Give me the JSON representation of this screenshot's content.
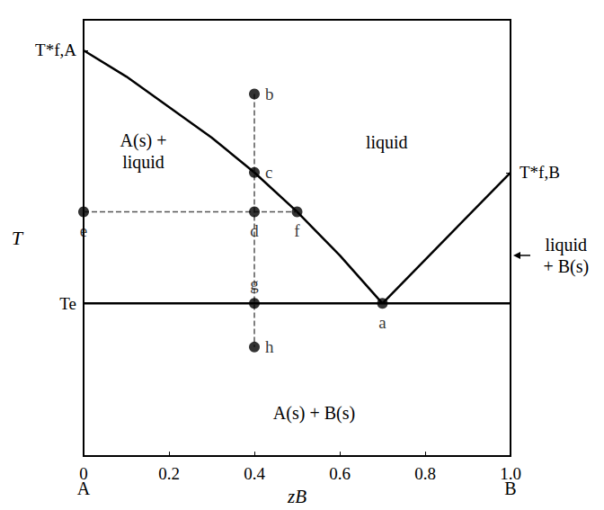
{
  "chart_data": {
    "type": "line",
    "x_label": "zB",
    "y_label": "T",
    "xlim": [
      0,
      1
    ],
    "xticks": [
      0,
      0.2,
      0.4,
      0.6,
      0.8,
      {
        "value": 1,
        "label": "1.0"
      }
    ],
    "ylim": [
      0,
      100
    ],
    "yticks": [
      {
        "value": 35,
        "label": "Te"
      },
      {
        "value": 93,
        "label": "T*f,A"
      }
    ],
    "y2lim": [
      0,
      100
    ],
    "y2ticks": [
      {
        "value": 65,
        "label": "T*f,B"
      }
    ],
    "grid": false,
    "tick_labels": true,
    "series": [
      {
        "x": [
          0,
          0.1,
          0.2,
          0.3,
          0.4,
          0.5,
          0.6,
          0.7
        ],
        "values": [
          93,
          87,
          80,
          73,
          65,
          56,
          46,
          35
        ],
        "color": "#000000",
        "line_style": "solid"
      },
      {
        "x": [
          0.7,
          1.0
        ],
        "values": [
          35,
          65
        ],
        "color": "#000000",
        "line_style": "solid"
      },
      {
        "x": [
          0,
          1
        ],
        "values": [
          35,
          35
        ],
        "color": "#000000",
        "line_style": "solid"
      },
      {
        "x": [
          0.4,
          0.4
        ],
        "values": [
          83,
          25
        ],
        "color": "#555555",
        "line_style": "dashed"
      },
      {
        "x": [
          0,
          0.5
        ],
        "values": [
          56,
          56
        ],
        "color": "#555555",
        "line_style": "dashed"
      }
    ],
    "points": {
      "color": "#000000",
      "marker": "circle",
      "items": [
        {
          "label": "a",
          "x": 0.7,
          "y": 35
        },
        {
          "label": "b",
          "x": 0.4,
          "y": 83
        },
        {
          "label": "c",
          "x": 0.4,
          "y": 65
        },
        {
          "label": "d",
          "x": 0.4,
          "y": 56
        },
        {
          "label": "e",
          "x": 0,
          "y": 56
        },
        {
          "label": "f",
          "x": 0.5,
          "y": 56
        },
        {
          "label": "g",
          "x": 0.4,
          "y": 35
        },
        {
          "label": "h",
          "x": 0.4,
          "y": 25
        }
      ]
    },
    "annotations": [
      {
        "text": "A(s) +\nliquid",
        "x": 0.14,
        "y": 70
      },
      {
        "text": "liquid",
        "x": 0.71,
        "y": 72
      },
      {
        "text": "A(s) + B(s)",
        "x": 0.54,
        "y": 10
      },
      {
        "text": "liquid\n+ B(s)",
        "x": 1.13,
        "y": 46
      }
    ],
    "endpoint_labels": [
      {
        "x": 0,
        "text": "A"
      },
      {
        "x": 1,
        "text": "B"
      }
    ]
  }
}
